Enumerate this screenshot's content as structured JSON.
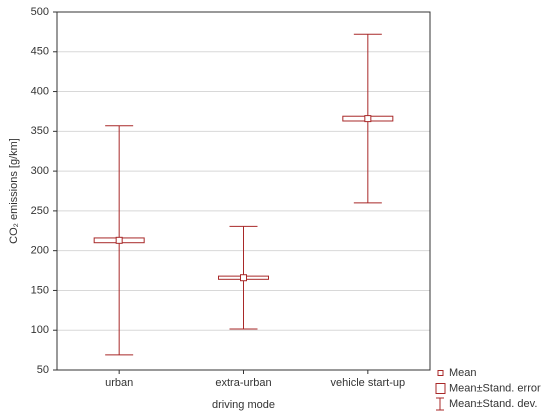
{
  "chart_data": {
    "type": "errorbar",
    "ylabel": "CO₂ emissions [g/km]",
    "xlabel": "driving mode",
    "categories": [
      "urban",
      "extra-urban",
      "vehicle start-up"
    ],
    "mean": [
      213,
      166,
      366
    ],
    "se": [
      3,
      2,
      3
    ],
    "sd": [
      144,
      64.5,
      106
    ],
    "color": "#a82828",
    "ylim": [
      50,
      500
    ],
    "yticks": [
      50,
      100,
      150,
      200,
      250,
      300,
      350,
      400,
      450,
      500
    ],
    "grid": true,
    "legend": {
      "position": "lower right",
      "entries": [
        "Mean",
        "Mean±Stand. error",
        "Mean±Stand. dev."
      ]
    }
  }
}
